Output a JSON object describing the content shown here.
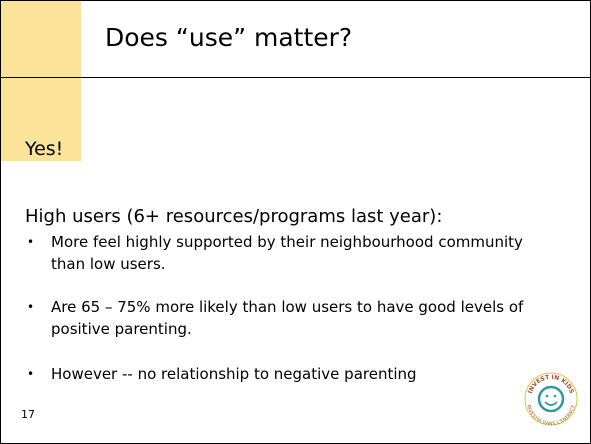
{
  "title": "Does “use” matter?",
  "answer": "Yes!",
  "heading": "High users (6+ resources/programs last year):",
  "bullets": [
    "More feel highly supported by their neighbourhood community than low users.",
    "Are 65 – 75% more likely than low users to have good levels of positive parenting.",
    "However -- no relationship to negative parenting"
  ],
  "page_number": "17",
  "logo": {
    "top": "INVEST IN KIDS",
    "bottom": "INVESTIR DANS L'ENFANCE"
  }
}
